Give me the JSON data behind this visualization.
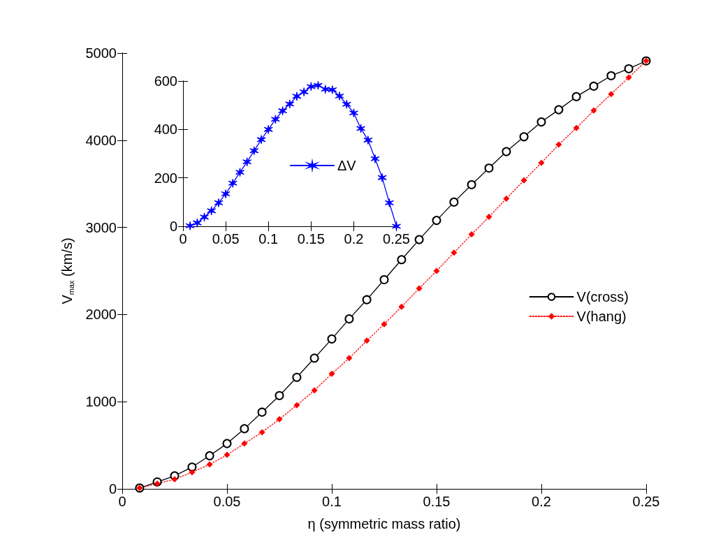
{
  "chart_data": [
    {
      "type": "line",
      "xlabel": "η (symmetric mass ratio)",
      "ylabel": "V$_{max}$ (km/s)",
      "x": [
        0.0083,
        0.0167,
        0.025,
        0.0333,
        0.0417,
        0.05,
        0.0583,
        0.0667,
        0.075,
        0.0833,
        0.0917,
        0.1,
        0.1083,
        0.1167,
        0.125,
        0.1333,
        0.1417,
        0.15,
        0.1583,
        0.1667,
        0.175,
        0.1833,
        0.1917,
        0.2,
        0.2083,
        0.2167,
        0.225,
        0.2333,
        0.2417,
        0.25
      ],
      "series": [
        {
          "name": "V(cross)",
          "color": "#000000",
          "marker": "circle",
          "line_style": "solid",
          "values": [
            10,
            80,
            150,
            250,
            380,
            520,
            690,
            880,
            1070,
            1280,
            1500,
            1720,
            1950,
            2170,
            2400,
            2630,
            2860,
            3080,
            3290,
            3490,
            3680,
            3870,
            4040,
            4210,
            4350,
            4500,
            4620,
            4740,
            4820,
            4910
          ]
        },
        {
          "name": "V(hang)",
          "color": "#ff0000",
          "marker": "diamond",
          "line_style": "dotted",
          "values": [
            10,
            60,
            110,
            190,
            280,
            390,
            520,
            650,
            800,
            960,
            1130,
            1320,
            1500,
            1700,
            1890,
            2090,
            2300,
            2500,
            2710,
            2920,
            3120,
            3330,
            3540,
            3740,
            3950,
            4140,
            4340,
            4530,
            4720,
            4910
          ]
        }
      ],
      "xlim": [
        0,
        0.25
      ],
      "xticks": [
        0,
        0.05,
        0.1,
        0.15,
        0.2,
        0.25
      ],
      "ylim": [
        0,
        5000
      ],
      "yticks": [
        0,
        1000,
        2000,
        3000,
        4000,
        5000
      ],
      "grid": false,
      "legend": "right"
    },
    {
      "type": "line",
      "x": [
        0.0083,
        0.0167,
        0.025,
        0.0333,
        0.0417,
        0.05,
        0.0583,
        0.0667,
        0.075,
        0.0833,
        0.0917,
        0.1,
        0.1083,
        0.1167,
        0.125,
        0.1333,
        0.1417,
        0.15,
        0.1583,
        0.1667,
        0.175,
        0.1833,
        0.1917,
        0.2,
        0.2083,
        0.2167,
        0.225,
        0.2333,
        0.2417,
        0.25
      ],
      "series": [
        {
          "name": "ΔV",
          "color": "#0000ff",
          "values": [
            2,
            14,
            38,
            64,
            97,
            134,
            178,
            223,
            266,
            312,
            358,
            400,
            442,
            477,
            505,
            537,
            555,
            577,
            582,
            566,
            564,
            538,
            504,
            468,
            404,
            356,
            279,
            201,
            97,
            0
          ]
        }
      ],
      "marker": "cross",
      "line_style": "solid",
      "xlim": [
        0,
        0.25
      ],
      "xticks": [
        0,
        0.05,
        0.1,
        0.15,
        0.2,
        0.25
      ],
      "ylim": [
        0,
        600
      ],
      "yticks": [
        0,
        200,
        400,
        600
      ],
      "grid": false,
      "legend": "center"
    }
  ]
}
